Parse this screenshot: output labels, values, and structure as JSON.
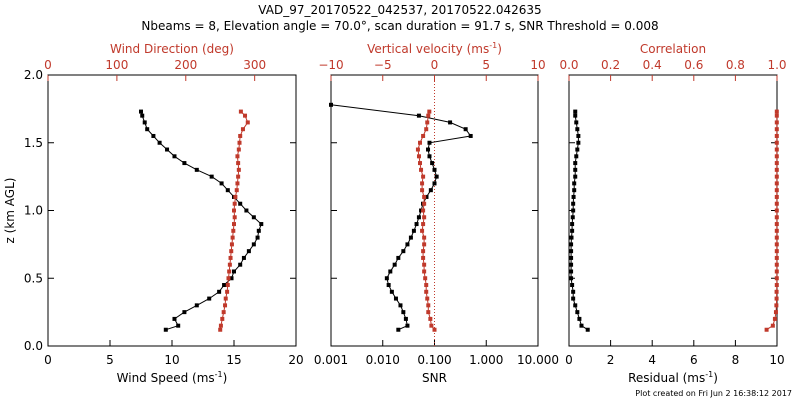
{
  "title_line1": "VAD_97_20170522_042537, 20170522.042635",
  "title_line2": "Nbeams = 8, Elevation angle = 70.0°, scan duration = 91.7 s, SNR Threshold = 0.008",
  "footer": "Plot created on Fri Jun  2 16:38:12 2017",
  "colors": {
    "black": "#000000",
    "red": "#c0392b"
  },
  "chart_data": [
    {
      "type": "line",
      "panel": "left",
      "ylabel": "z (km AGL)",
      "ylim": [
        0.0,
        2.0
      ],
      "yticks": [
        "0.0",
        "0.5",
        "1.0",
        "1.5",
        "2.0"
      ],
      "bottom_axis": {
        "label": "Wind Speed (ms",
        "sup": "-1",
        "label_end": ")",
        "range": [
          0,
          20
        ],
        "ticks": [
          "0",
          "5",
          "10",
          "15",
          "20"
        ]
      },
      "top_axis": {
        "label": "Wind Direction (deg)",
        "range": [
          0,
          360
        ],
        "ticks": [
          "0",
          "100",
          "200",
          "300"
        ],
        "tick_values": [
          0,
          100,
          200,
          300
        ]
      },
      "series": [
        {
          "axis": "bottom",
          "color": "black",
          "y": [
            0.12,
            0.15,
            0.2,
            0.25,
            0.3,
            0.35,
            0.4,
            0.45,
            0.5,
            0.55,
            0.6,
            0.65,
            0.7,
            0.75,
            0.8,
            0.85,
            0.9,
            0.95,
            1.0,
            1.05,
            1.1,
            1.15,
            1.2,
            1.25,
            1.3,
            1.35,
            1.4,
            1.45,
            1.5,
            1.55,
            1.6,
            1.65,
            1.7,
            1.73
          ],
          "values": [
            9.5,
            10.5,
            10.2,
            11.0,
            12.0,
            13.0,
            13.8,
            14.2,
            14.8,
            15.0,
            15.5,
            15.8,
            16.2,
            16.6,
            16.9,
            17.0,
            17.2,
            16.6,
            16.0,
            15.5,
            15.0,
            14.5,
            14.0,
            13.2,
            12.0,
            11.0,
            10.2,
            9.6,
            9.0,
            8.5,
            8.0,
            7.8,
            7.6,
            7.5
          ]
        },
        {
          "axis": "top",
          "color": "red",
          "y": [
            0.12,
            0.15,
            0.2,
            0.25,
            0.3,
            0.35,
            0.4,
            0.45,
            0.5,
            0.55,
            0.6,
            0.65,
            0.7,
            0.75,
            0.8,
            0.85,
            0.9,
            0.95,
            1.0,
            1.05,
            1.1,
            1.15,
            1.2,
            1.25,
            1.3,
            1.35,
            1.4,
            1.45,
            1.5,
            1.55,
            1.6,
            1.65,
            1.7,
            1.73
          ],
          "values": [
            250,
            251,
            253,
            255,
            257,
            258,
            260,
            261,
            262,
            263,
            264,
            265,
            266,
            267,
            268,
            269,
            270,
            271,
            270,
            271,
            272,
            274,
            275,
            276,
            277,
            276,
            275,
            277,
            278,
            279,
            283,
            290,
            286,
            280
          ]
        }
      ]
    },
    {
      "type": "line",
      "panel": "middle",
      "bottom_axis": {
        "label": "SNR",
        "range": [
          0.001,
          10
        ],
        "scale": "log",
        "ticks": [
          "0.001",
          "0.010",
          "0.100",
          "1.000",
          "10.000"
        ],
        "tick_values": [
          0.001,
          0.01,
          0.1,
          1,
          10
        ]
      },
      "top_axis": {
        "label": "Vertical velocity (ms",
        "sup": "-1",
        "label_end": ")",
        "range": [
          -10,
          10
        ],
        "ticks": [
          "−10",
          "−5",
          "0",
          "5",
          "10"
        ],
        "tick_values": [
          -10,
          -5,
          0,
          5,
          10
        ]
      },
      "series": [
        {
          "axis": "bottom",
          "color": "black",
          "y": [
            0.12,
            0.15,
            0.2,
            0.25,
            0.3,
            0.35,
            0.4,
            0.45,
            0.5,
            0.55,
            0.6,
            0.65,
            0.7,
            0.75,
            0.8,
            0.85,
            0.9,
            0.95,
            1.0,
            1.05,
            1.1,
            1.15,
            1.2,
            1.25,
            1.3,
            1.35,
            1.4,
            1.45,
            1.5,
            1.55,
            1.6,
            1.65,
            1.7,
            1.78
          ],
          "values": [
            0.02,
            0.03,
            0.028,
            0.025,
            0.022,
            0.018,
            0.015,
            0.013,
            0.012,
            0.014,
            0.017,
            0.02,
            0.025,
            0.03,
            0.035,
            0.04,
            0.045,
            0.05,
            0.055,
            0.06,
            0.07,
            0.085,
            0.1,
            0.11,
            0.1,
            0.09,
            0.08,
            0.075,
            0.08,
            0.5,
            0.4,
            0.2,
            0.05,
            0.001
          ]
        },
        {
          "axis": "top",
          "color": "red",
          "y": [
            0.12,
            0.15,
            0.2,
            0.25,
            0.3,
            0.35,
            0.4,
            0.45,
            0.5,
            0.55,
            0.6,
            0.65,
            0.7,
            0.75,
            0.8,
            0.85,
            0.9,
            0.95,
            1.0,
            1.05,
            1.1,
            1.15,
            1.2,
            1.25,
            1.3,
            1.35,
            1.4,
            1.45,
            1.5,
            1.55,
            1.6,
            1.65,
            1.7,
            1.73
          ],
          "values": [
            0.0,
            -0.3,
            -0.4,
            -0.6,
            -0.6,
            -0.7,
            -0.8,
            -0.8,
            -0.9,
            -1.0,
            -1.0,
            -1.1,
            -1.1,
            -1.0,
            -1.0,
            -1.2,
            -1.1,
            -1.0,
            -1.1,
            -1.0,
            -1.0,
            -1.2,
            -1.2,
            -1.1,
            -1.3,
            -1.4,
            -1.5,
            -1.6,
            -1.4,
            -1.1,
            -0.8,
            -0.7,
            -0.6,
            -0.5
          ]
        }
      ]
    },
    {
      "type": "line",
      "panel": "right",
      "bottom_axis": {
        "label": "Residual (ms",
        "sup": "-1",
        "label_end": ")",
        "range": [
          0,
          10
        ],
        "ticks": [
          "0",
          "2",
          "4",
          "6",
          "8",
          "10"
        ]
      },
      "top_axis": {
        "label": "Correlation",
        "range": [
          0.0,
          1.0
        ],
        "ticks": [
          "0.0",
          "0.2",
          "0.4",
          "0.6",
          "0.8",
          "1.0"
        ]
      },
      "series": [
        {
          "axis": "bottom",
          "color": "black",
          "y": [
            0.12,
            0.15,
            0.2,
            0.25,
            0.3,
            0.35,
            0.4,
            0.45,
            0.5,
            0.55,
            0.6,
            0.65,
            0.7,
            0.75,
            0.8,
            0.85,
            0.9,
            0.95,
            1.0,
            1.05,
            1.1,
            1.15,
            1.2,
            1.25,
            1.3,
            1.35,
            1.4,
            1.45,
            1.5,
            1.55,
            1.6,
            1.65,
            1.7,
            1.73
          ],
          "values": [
            0.9,
            0.6,
            0.5,
            0.4,
            0.3,
            0.2,
            0.2,
            0.15,
            0.1,
            0.1,
            0.1,
            0.1,
            0.1,
            0.1,
            0.12,
            0.15,
            0.15,
            0.18,
            0.2,
            0.2,
            0.22,
            0.25,
            0.25,
            0.3,
            0.3,
            0.3,
            0.35,
            0.4,
            0.45,
            0.45,
            0.4,
            0.35,
            0.3,
            0.3
          ]
        },
        {
          "axis": "top",
          "color": "red",
          "y": [
            0.12,
            0.15,
            0.2,
            0.25,
            0.3,
            0.35,
            0.4,
            0.45,
            0.5,
            0.55,
            0.6,
            0.65,
            0.7,
            0.75,
            0.8,
            0.85,
            0.9,
            0.95,
            1.0,
            1.05,
            1.1,
            1.15,
            1.2,
            1.25,
            1.3,
            1.35,
            1.4,
            1.45,
            1.5,
            1.55,
            1.6,
            1.65,
            1.7,
            1.73
          ],
          "values": [
            0.95,
            0.98,
            0.99,
            0.995,
            0.997,
            0.998,
            0.998,
            0.999,
            0.999,
            0.999,
            0.999,
            0.999,
            0.999,
            0.999,
            0.999,
            0.999,
            0.999,
            0.999,
            0.999,
            0.999,
            0.999,
            0.999,
            0.999,
            0.999,
            0.999,
            0.999,
            0.999,
            0.999,
            0.999,
            0.999,
            0.999,
            0.999,
            0.999,
            0.999
          ]
        }
      ]
    }
  ]
}
